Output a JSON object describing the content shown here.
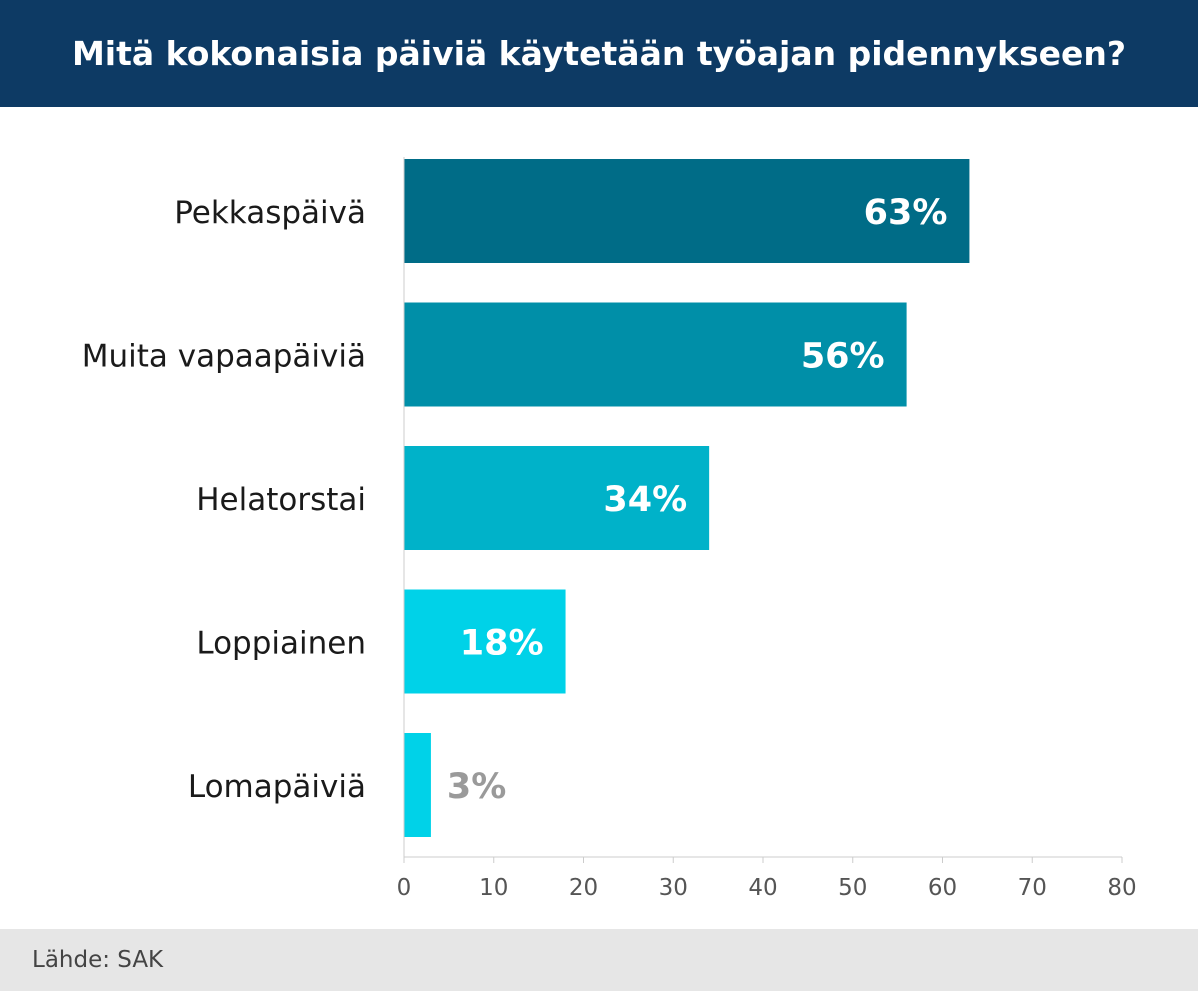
{
  "title": "Mitä kokonaisia päiviä käytetään työajan pidennykseen?",
  "source": "Lähde: SAK",
  "colors": {
    "header_bg": "#0d3a64",
    "footer_bg": "#e6e6e6",
    "inside_label": "#ffffff",
    "outside_label": "#9a9a9a",
    "category_label": "#1a1a1a",
    "tick_label": "#555555",
    "axis": "#cccccc"
  },
  "chart_data": {
    "type": "bar",
    "orientation": "horizontal",
    "categories": [
      "Pekkaspäivä",
      "Muita vapaapäiviä",
      "Helatorstai",
      "Loppiainen",
      "Lomapäiviä"
    ],
    "values": [
      63,
      56,
      34,
      18,
      3
    ],
    "data_labels": [
      "63%",
      "56%",
      "34%",
      "18%",
      "3%"
    ],
    "bar_colors": [
      "#006c87",
      "#008fa8",
      "#00b2c9",
      "#00d2e8",
      "#00d2e8"
    ],
    "xlim": [
      0,
      80
    ],
    "x_ticks": [
      0,
      10,
      20,
      30,
      40,
      50,
      60,
      70,
      80
    ],
    "grid": false,
    "legend": "none",
    "title": "Mitä kokonaisia päiviä käytetään työajan pidennykseen?",
    "xlabel": "",
    "ylabel": ""
  }
}
